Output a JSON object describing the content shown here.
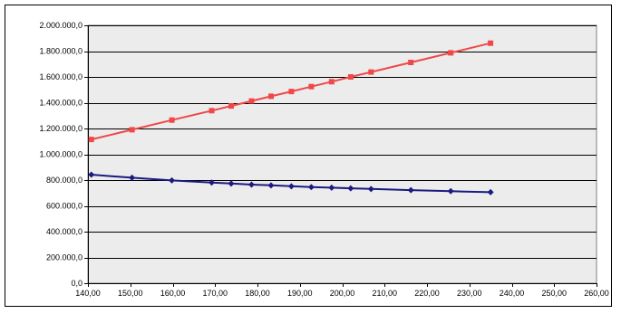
{
  "chart_data": {
    "type": "line",
    "title": "",
    "xlabel": "",
    "ylabel": "",
    "xlim": [
      140,
      260
    ],
    "ylim": [
      0,
      2000000
    ],
    "x_ticks": [
      140,
      150,
      160,
      170,
      180,
      190,
      200,
      210,
      220,
      230,
      240,
      250,
      260
    ],
    "y_ticks": [
      0,
      200000,
      400000,
      600000,
      800000,
      1000000,
      1200000,
      1400000,
      1600000,
      1800000,
      2000000
    ],
    "x_tick_labels": [
      "140,00",
      "150,00",
      "160,00",
      "170,00",
      "180,00",
      "190,00",
      "200,00",
      "210,00",
      "220,00",
      "230,00",
      "240,00",
      "250,00",
      "260,00"
    ],
    "y_tick_labels": [
      "0,0",
      "200.000,0",
      "400.000,0",
      "600.000,0",
      "800.000,0",
      "1.000.000,0",
      "1.200.000,0",
      "1.400.000,0",
      "1.600.000,0",
      "1.800.000,0",
      "2.000.000,0"
    ],
    "grid": "horizontal",
    "legend": "none",
    "plot_background": "#ececec",
    "series": [
      {
        "color": "#f04848",
        "marker": "square",
        "points": [
          [
            140.8,
            1115000
          ],
          [
            150.4,
            1190000
          ],
          [
            159.8,
            1265000
          ],
          [
            169.2,
            1338000
          ],
          [
            173.8,
            1375000
          ],
          [
            178.6,
            1413000
          ],
          [
            183.2,
            1450000
          ],
          [
            188.0,
            1487000
          ],
          [
            192.7,
            1525000
          ],
          [
            197.5,
            1563000
          ],
          [
            202.0,
            1600000
          ],
          [
            206.8,
            1638000
          ],
          [
            216.2,
            1712000
          ],
          [
            225.6,
            1787000
          ],
          [
            235.0,
            1862000
          ]
        ]
      },
      {
        "color": "#1a1a80",
        "marker": "diamond",
        "points": [
          [
            140.8,
            842000
          ],
          [
            150.4,
            818000
          ],
          [
            159.8,
            797000
          ],
          [
            169.2,
            781000
          ],
          [
            173.8,
            773000
          ],
          [
            178.6,
            765000
          ],
          [
            183.2,
            759000
          ],
          [
            188.0,
            752000
          ],
          [
            192.7,
            746000
          ],
          [
            197.5,
            741000
          ],
          [
            202.0,
            736000
          ],
          [
            206.8,
            731000
          ],
          [
            216.2,
            722000
          ],
          [
            225.6,
            714000
          ],
          [
            235.0,
            706000
          ]
        ]
      }
    ]
  }
}
